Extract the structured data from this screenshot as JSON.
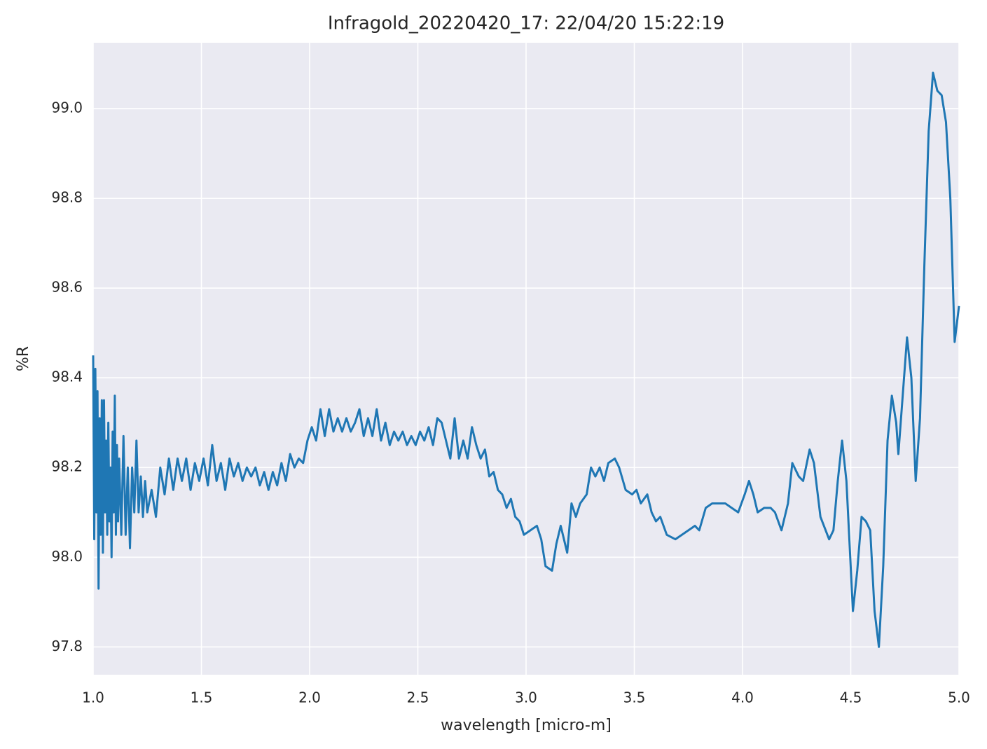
{
  "chart_data": {
    "type": "line",
    "title": "Infragold_20220420_17:  22/04/20 15:22:19",
    "xlabel": "wavelength [micro-m]",
    "ylabel": "%R",
    "grid": true,
    "xlim": [
      1.0,
      5.0
    ],
    "ylim": [
      97.738,
      99.147
    ],
    "xticks": [
      {
        "value": 1.0,
        "label": "1.0"
      },
      1.5,
      {
        "value": 2.0,
        "label": "2.0"
      },
      2.5,
      {
        "value": 3.0,
        "label": "3.0"
      },
      3.5,
      {
        "value": 4.0,
        "label": "4.0"
      },
      4.5,
      {
        "value": 5.0,
        "label": "5.0"
      }
    ],
    "yticks": [
      97.8,
      {
        "value": 98.0,
        "label": "98.0"
      },
      98.2,
      98.4,
      98.6,
      98.8,
      {
        "value": 99.0,
        "label": "99.0"
      }
    ],
    "x": [
      1.0,
      1.005,
      1.01,
      1.015,
      1.02,
      1.025,
      1.03,
      1.035,
      1.04,
      1.045,
      1.05,
      1.055,
      1.06,
      1.065,
      1.07,
      1.075,
      1.08,
      1.085,
      1.09,
      1.095,
      1.1,
      1.105,
      1.11,
      1.115,
      1.12,
      1.13,
      1.14,
      1.15,
      1.16,
      1.17,
      1.18,
      1.19,
      1.2,
      1.21,
      1.22,
      1.23,
      1.24,
      1.25,
      1.27,
      1.29,
      1.31,
      1.33,
      1.35,
      1.37,
      1.39,
      1.41,
      1.43,
      1.45,
      1.47,
      1.49,
      1.51,
      1.53,
      1.55,
      1.57,
      1.59,
      1.61,
      1.63,
      1.65,
      1.67,
      1.69,
      1.71,
      1.73,
      1.75,
      1.77,
      1.79,
      1.81,
      1.83,
      1.85,
      1.87,
      1.89,
      1.91,
      1.93,
      1.95,
      1.97,
      1.99,
      2.01,
      2.03,
      2.05,
      2.07,
      2.09,
      2.11,
      2.13,
      2.15,
      2.17,
      2.19,
      2.21,
      2.23,
      2.25,
      2.27,
      2.29,
      2.31,
      2.33,
      2.35,
      2.37,
      2.39,
      2.41,
      2.43,
      2.45,
      2.47,
      2.49,
      2.51,
      2.53,
      2.55,
      2.57,
      2.59,
      2.61,
      2.63,
      2.65,
      2.67,
      2.69,
      2.71,
      2.73,
      2.75,
      2.77,
      2.79,
      2.81,
      2.83,
      2.85,
      2.87,
      2.89,
      2.91,
      2.93,
      2.95,
      2.97,
      2.99,
      3.02,
      3.05,
      3.07,
      3.09,
      3.12,
      3.14,
      3.16,
      3.19,
      3.21,
      3.23,
      3.25,
      3.28,
      3.3,
      3.32,
      3.34,
      3.36,
      3.38,
      3.41,
      3.43,
      3.46,
      3.49,
      3.51,
      3.53,
      3.56,
      3.58,
      3.6,
      3.62,
      3.65,
      3.69,
      3.72,
      3.75,
      3.78,
      3.8,
      3.83,
      3.86,
      3.89,
      3.92,
      3.95,
      3.98,
      4.01,
      4.03,
      4.05,
      4.07,
      4.1,
      4.13,
      4.15,
      4.18,
      4.21,
      4.23,
      4.26,
      4.28,
      4.31,
      4.33,
      4.36,
      4.4,
      4.42,
      4.44,
      4.46,
      4.48,
      4.51,
      4.53,
      4.55,
      4.57,
      4.59,
      4.61,
      4.63,
      4.65,
      4.67,
      4.69,
      4.71,
      4.72,
      4.74,
      4.76,
      4.78,
      4.8,
      4.82,
      4.84,
      4.86,
      4.88,
      4.9,
      4.92,
      4.94,
      4.96,
      4.98,
      5.0
    ],
    "series": [
      {
        "color": "#1f77b4",
        "values": [
          98.45,
          98.04,
          98.42,
          98.1,
          98.37,
          97.93,
          98.31,
          98.05,
          98.35,
          98.01,
          98.35,
          98.1,
          98.26,
          98.05,
          98.3,
          98.08,
          98.2,
          98.0,
          98.28,
          98.1,
          98.36,
          98.05,
          98.25,
          98.08,
          98.22,
          98.05,
          98.27,
          98.05,
          98.2,
          98.02,
          98.2,
          98.1,
          98.26,
          98.1,
          98.18,
          98.09,
          98.17,
          98.1,
          98.15,
          98.09,
          98.2,
          98.14,
          98.22,
          98.15,
          98.22,
          98.17,
          98.22,
          98.15,
          98.21,
          98.17,
          98.22,
          98.16,
          98.25,
          98.17,
          98.21,
          98.15,
          98.22,
          98.18,
          98.21,
          98.17,
          98.2,
          98.18,
          98.2,
          98.16,
          98.19,
          98.15,
          98.19,
          98.16,
          98.21,
          98.17,
          98.23,
          98.2,
          98.22,
          98.21,
          98.26,
          98.29,
          98.26,
          98.33,
          98.27,
          98.33,
          98.28,
          98.31,
          98.28,
          98.31,
          98.28,
          98.3,
          98.33,
          98.27,
          98.31,
          98.27,
          98.33,
          98.26,
          98.3,
          98.25,
          98.28,
          98.26,
          98.28,
          98.25,
          98.27,
          98.25,
          98.28,
          98.26,
          98.29,
          98.25,
          98.31,
          98.3,
          98.26,
          98.22,
          98.31,
          98.22,
          98.26,
          98.22,
          98.29,
          98.25,
          98.22,
          98.24,
          98.18,
          98.19,
          98.15,
          98.14,
          98.11,
          98.13,
          98.09,
          98.08,
          98.05,
          98.06,
          98.07,
          98.04,
          97.98,
          97.97,
          98.03,
          98.07,
          98.01,
          98.12,
          98.09,
          98.12,
          98.14,
          98.2,
          98.18,
          98.2,
          98.17,
          98.21,
          98.22,
          98.2,
          98.15,
          98.14,
          98.15,
          98.12,
          98.14,
          98.1,
          98.08,
          98.09,
          98.05,
          98.04,
          98.05,
          98.06,
          98.07,
          98.06,
          98.11,
          98.12,
          98.12,
          98.12,
          98.11,
          98.1,
          98.14,
          98.17,
          98.14,
          98.1,
          98.11,
          98.11,
          98.1,
          98.06,
          98.12,
          98.21,
          98.18,
          98.17,
          98.24,
          98.21,
          98.09,
          98.04,
          98.06,
          98.17,
          98.26,
          98.17,
          97.88,
          97.97,
          98.09,
          98.08,
          98.06,
          97.88,
          97.8,
          97.98,
          98.26,
          98.36,
          98.3,
          98.23,
          98.36,
          98.49,
          98.4,
          98.17,
          98.31,
          98.65,
          98.95,
          99.08,
          99.04,
          99.03,
          98.97,
          98.8,
          98.48,
          98.56
        ]
      }
    ]
  }
}
